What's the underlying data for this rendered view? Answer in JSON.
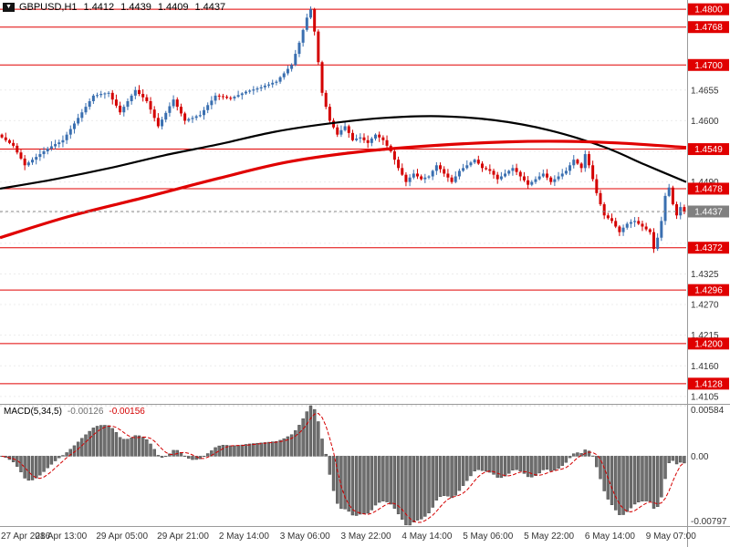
{
  "header": {
    "menu_icon": "▼",
    "symbol": "GBPUSD,H1",
    "open": "1.4412",
    "high": "1.4439",
    "low": "1.4409",
    "close": "1.4437"
  },
  "macd_panel": {
    "label": "MACD(5,34,5)",
    "value_main": "-0.00126",
    "value_signal": "-0.00156"
  },
  "colors": {
    "up": "#3a6fb0",
    "down": "#d40000",
    "level_line": "#e00000",
    "badge_bg": "#e00000",
    "badge_text": "#ffffff",
    "current_badge_bg": "#808080",
    "ma_slow": "#000000",
    "ma_fast": "#e00000",
    "macd_bar": "#6e6e6e",
    "macd_bar_edge": "#3c3c3c",
    "macd_signal": "#d40000",
    "grid": "#ececec",
    "axis_text": "#333333",
    "frame": "#9a9a9a"
  },
  "chart_data": [
    {
      "type": "candlestick",
      "title": "GBPUSD,H1",
      "symbol": "GBPUSD",
      "timeframe": "H1",
      "ohlc_current": {
        "open": 1.4412,
        "high": 1.4439,
        "low": 1.4409,
        "close": 1.4437
      },
      "ylim": [
        1.4095,
        1.4815
      ],
      "current_price": 1.4437,
      "current_label": "1.4437",
      "grid_ticks": [
        1.4655,
        1.46,
        1.4545,
        1.449,
        1.4435,
        1.438,
        1.4325,
        1.427,
        1.4215,
        1.416,
        1.4105
      ],
      "plain_labels": [
        {
          "text": "1.4655",
          "value": 1.4655
        },
        {
          "text": "1.4600",
          "value": 1.46
        },
        {
          "text": "1.4490",
          "value": 1.449
        },
        {
          "text": "1.4325",
          "value": 1.4325
        },
        {
          "text": "1.4270",
          "value": 1.427
        },
        {
          "text": "1.4215",
          "value": 1.4215
        },
        {
          "text": "1.4160",
          "value": 1.416
        },
        {
          "text": "1.4105",
          "value": 1.4105
        }
      ],
      "levels": [
        {
          "text": "1.4800",
          "value": 1.48
        },
        {
          "text": "1.4768",
          "value": 1.4768
        },
        {
          "text": "1.4700",
          "value": 1.47
        },
        {
          "text": "1.4549",
          "value": 1.4549
        },
        {
          "text": "1.4478",
          "value": 1.4478
        },
        {
          "text": "1.4372",
          "value": 1.4372
        },
        {
          "text": "1.4296",
          "value": 1.4296
        },
        {
          "text": "1.4200",
          "value": 1.42
        },
        {
          "text": "1.4128",
          "value": 1.4128
        }
      ],
      "x_labels": [
        {
          "index": 0,
          "label": "27 Apr 2016"
        },
        {
          "index": 16,
          "label": "28 Apr 13:00"
        },
        {
          "index": 32,
          "label": "29 Apr 05:00"
        },
        {
          "index": 48,
          "label": "29 Apr 21:00"
        },
        {
          "index": 64,
          "label": "2 May 14:00"
        },
        {
          "index": 80,
          "label": "3 May 06:00"
        },
        {
          "index": 96,
          "label": "3 May 22:00"
        },
        {
          "index": 112,
          "label": "4 May 14:00"
        },
        {
          "index": 128,
          "label": "5 May 06:00"
        },
        {
          "index": 144,
          "label": "5 May 22:00"
        },
        {
          "index": 160,
          "label": "6 May 14:00"
        },
        {
          "index": 176,
          "label": "9 May 07:00"
        }
      ],
      "closes": [
        1.457,
        1.4565,
        1.456,
        1.4555,
        1.4543,
        1.4532,
        1.452,
        1.4525,
        1.453,
        1.4535,
        1.454,
        1.4545,
        1.455,
        1.4554,
        1.4558,
        1.4561,
        1.4565,
        1.4575,
        1.4585,
        1.4595,
        1.4605,
        1.4615,
        1.4625,
        1.4635,
        1.4645,
        1.4646,
        1.4648,
        1.4649,
        1.465,
        1.4638,
        1.4627,
        1.4615,
        1.4625,
        1.4635,
        1.4645,
        1.4655,
        1.4648,
        1.4642,
        1.4635,
        1.462,
        1.4605,
        1.459,
        1.4602,
        1.4614,
        1.4626,
        1.4638,
        1.4625,
        1.4613,
        1.46,
        1.4603,
        1.4605,
        1.4608,
        1.461,
        1.4619,
        1.4628,
        1.4636,
        1.4645,
        1.4644,
        1.4643,
        1.4641,
        1.464,
        1.4643,
        1.4646,
        1.4649,
        1.4652,
        1.4654,
        1.4656,
        1.4658,
        1.466,
        1.4663,
        1.4665,
        1.4668,
        1.467,
        1.4678,
        1.4685,
        1.4693,
        1.47,
        1.472,
        1.474,
        1.4763,
        1.4785,
        1.48,
        1.476,
        1.4705,
        1.465,
        1.4625,
        1.46,
        1.4588,
        1.4575,
        1.4583,
        1.459,
        1.4578,
        1.4565,
        1.4568,
        1.457,
        1.4565,
        1.456,
        1.4568,
        1.4575,
        1.457,
        1.4565,
        1.4555,
        1.4545,
        1.453,
        1.4515,
        1.4503,
        1.449,
        1.4498,
        1.4505,
        1.45,
        1.4495,
        1.4498,
        1.45,
        1.451,
        1.452,
        1.4513,
        1.4505,
        1.4498,
        1.449,
        1.45,
        1.451,
        1.4515,
        1.452,
        1.4525,
        1.453,
        1.4523,
        1.4515,
        1.4513,
        1.451,
        1.4503,
        1.4495,
        1.45,
        1.4505,
        1.451,
        1.4515,
        1.4508,
        1.45,
        1.4493,
        1.4485,
        1.449,
        1.4495,
        1.45,
        1.4505,
        1.4498,
        1.449,
        1.4495,
        1.45,
        1.4505,
        1.451,
        1.452,
        1.453,
        1.4523,
        1.4515,
        1.454,
        1.452,
        1.4495,
        1.447,
        1.445,
        1.443,
        1.4425,
        1.442,
        1.441,
        1.44,
        1.4408,
        1.4415,
        1.4418,
        1.442,
        1.4415,
        1.441,
        1.4405,
        1.44,
        1.437,
        1.439,
        1.442,
        1.4465,
        1.448,
        1.445,
        1.443,
        1.4445,
        1.4437
      ],
      "ma_slow": {
        "name": "slow-ma-black",
        "points": [
          [
            0,
            1.4478
          ],
          [
            0.08,
            1.4495
          ],
          [
            0.16,
            1.4515
          ],
          [
            0.24,
            1.4538
          ],
          [
            0.32,
            1.4558
          ],
          [
            0.4,
            1.458
          ],
          [
            0.48,
            1.4595
          ],
          [
            0.56,
            1.4605
          ],
          [
            0.64,
            1.4608
          ],
          [
            0.72,
            1.4601
          ],
          [
            0.8,
            1.4583
          ],
          [
            0.88,
            1.4553
          ],
          [
            0.94,
            1.4521
          ],
          [
            1.0,
            1.449
          ]
        ]
      },
      "ma_fast": {
        "name": "fast-ma-red",
        "points": [
          [
            0,
            1.439
          ],
          [
            0.1,
            1.4428
          ],
          [
            0.21,
            1.4462
          ],
          [
            0.32,
            1.4497
          ],
          [
            0.42,
            1.4526
          ],
          [
            0.53,
            1.4545
          ],
          [
            0.64,
            1.4556
          ],
          [
            0.74,
            1.4562
          ],
          [
            0.82,
            1.4563
          ],
          [
            0.9,
            1.456
          ],
          [
            1.0,
            1.4552
          ]
        ]
      }
    },
    {
      "type": "bar",
      "title": "MACD(5,34,5)",
      "params": [
        5,
        34,
        5
      ],
      "current_values": [
        "-0.00126",
        "-0.00156"
      ],
      "ylim": [
        -0.00797,
        0.00584
      ],
      "axis": [
        {
          "text": "0.00584",
          "value": 0.00584
        },
        {
          "text": "0.00",
          "value": 0
        },
        {
          "text": "-0.00797",
          "value": -0.00797
        }
      ]
    }
  ]
}
